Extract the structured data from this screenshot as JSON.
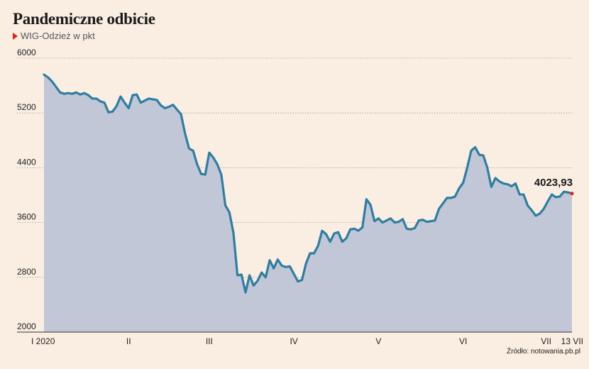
{
  "header": {
    "title": "Pandemiczne odbicie",
    "subtitle": "WIG-Odzież w pkt"
  },
  "source": "Źródło: notowania.pb.pl",
  "colors": {
    "line": "#2e7ea1",
    "area": "#c2c7d7",
    "marker": "#e2231a",
    "grid": "#999999"
  },
  "chart_data": {
    "type": "area",
    "title": "Pandemiczne odbicie",
    "subtitle": "WIG-Odzież w pkt",
    "ylim": [
      2000,
      6000
    ],
    "yticks": [
      2000,
      2800,
      3600,
      4400,
      5200,
      6000
    ],
    "grid": true,
    "xticks": [
      "I 2020",
      "II",
      "III",
      "IV",
      "V",
      "VI",
      "VII",
      "13 VII"
    ],
    "last_value_label": "4023,93",
    "series": [
      {
        "values": [
          5760,
          5720,
          5660,
          5580,
          5500,
          5480,
          5490,
          5480,
          5500,
          5470,
          5490,
          5460,
          5410,
          5410,
          5370,
          5350,
          5210,
          5220,
          5300,
          5440,
          5350,
          5270,
          5460,
          5470,
          5350,
          5380,
          5410,
          5400,
          5390,
          5310,
          5270,
          5290,
          5320,
          5250,
          5180,
          4900,
          4680,
          4650,
          4450,
          4310,
          4300,
          4620,
          4550,
          4450,
          4300,
          3850,
          3750,
          3450,
          2830,
          2840,
          2580,
          2830,
          2680,
          2750,
          2870,
          2800,
          3050,
          2930,
          3060,
          2970,
          2950,
          2960,
          2850,
          2740,
          2760,
          3000,
          3150,
          3150,
          3260,
          3480,
          3430,
          3320,
          3440,
          3460,
          3320,
          3370,
          3500,
          3510,
          3480,
          3530,
          3940,
          3860,
          3620,
          3660,
          3600,
          3630,
          3660,
          3600,
          3610,
          3650,
          3510,
          3500,
          3520,
          3630,
          3640,
          3610,
          3620,
          3630,
          3800,
          3880,
          3960,
          3960,
          3980,
          4100,
          4180,
          4400,
          4650,
          4700,
          4590,
          4580,
          4400,
          4120,
          4250,
          4200,
          4170,
          4160,
          4130,
          4170,
          4010,
          4010,
          3850,
          3780,
          3700,
          3730,
          3800,
          3910,
          4010,
          3970,
          3980,
          4050,
          4040,
          4023.93
        ]
      }
    ]
  }
}
